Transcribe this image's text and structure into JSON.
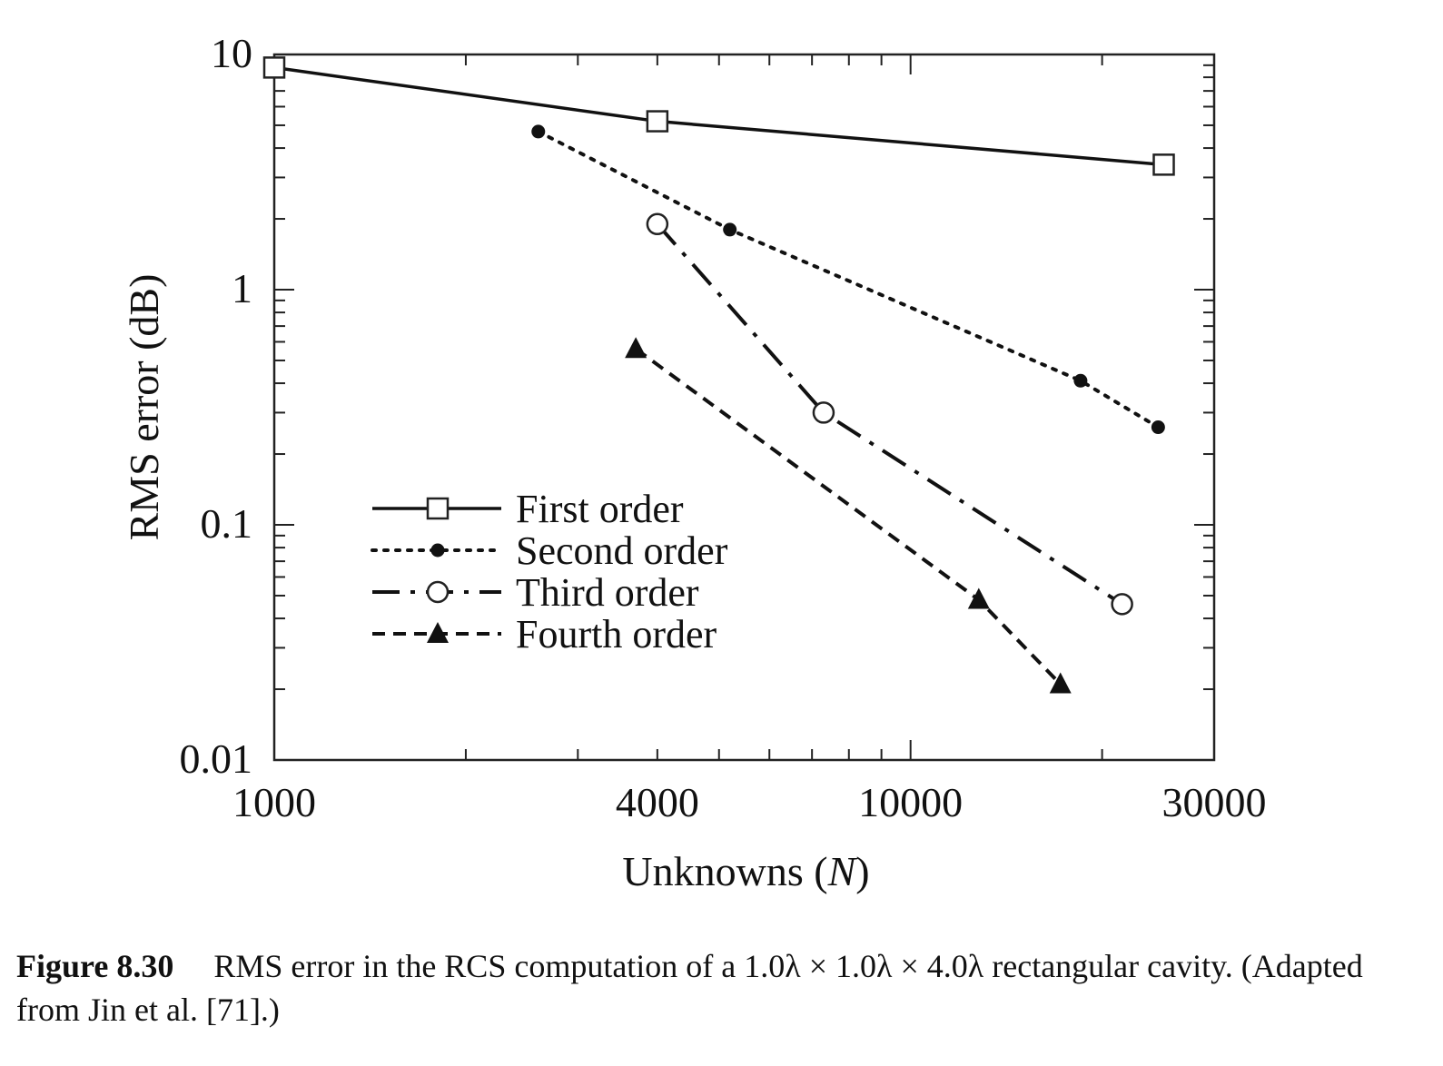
{
  "chart_data": {
    "type": "line",
    "xlabel_prefix": "Unknowns (",
    "xlabel_var": "N",
    "xlabel_suffix": ")",
    "ylabel": "RMS error (dB)",
    "x_scale": "log",
    "y_scale": "log",
    "xlim": [
      1000,
      30000
    ],
    "ylim": [
      0.01,
      10
    ],
    "x_ticks": [
      1000,
      4000,
      10000,
      30000
    ],
    "x_tick_labels": [
      "1000",
      "4000",
      "10000",
      "30000"
    ],
    "y_ticks": [
      0.01,
      0.1,
      1,
      10
    ],
    "y_tick_labels": [
      "0.01",
      "0.1",
      "1",
      "10"
    ],
    "grid": false,
    "legend_position": "lower-left",
    "series": [
      {
        "name": "First order",
        "line": "solid",
        "marker": "open-square",
        "points": [
          [
            1000,
            8.8
          ],
          [
            4000,
            5.2
          ],
          [
            25000,
            3.4
          ]
        ]
      },
      {
        "name": "Second order",
        "line": "dotted",
        "marker": "filled-circle",
        "points": [
          [
            2600,
            4.7
          ],
          [
            5200,
            1.8
          ],
          [
            18500,
            0.41
          ],
          [
            24500,
            0.26
          ]
        ]
      },
      {
        "name": "Third order",
        "line": "dash-dot",
        "marker": "open-circle",
        "points": [
          [
            4000,
            1.9
          ],
          [
            7300,
            0.3
          ],
          [
            21500,
            0.046
          ]
        ]
      },
      {
        "name": "Fourth order",
        "line": "dashed",
        "marker": "filled-triangle",
        "points": [
          [
            3700,
            0.56
          ],
          [
            12800,
            0.048
          ],
          [
            17200,
            0.021
          ]
        ]
      }
    ]
  },
  "caption": {
    "label": "Figure 8.30",
    "text": "RMS error in the RCS computation of a 1.0λ × 1.0λ × 4.0λ rectangular cavity. (Adapted from Jin et al. [71].)"
  }
}
